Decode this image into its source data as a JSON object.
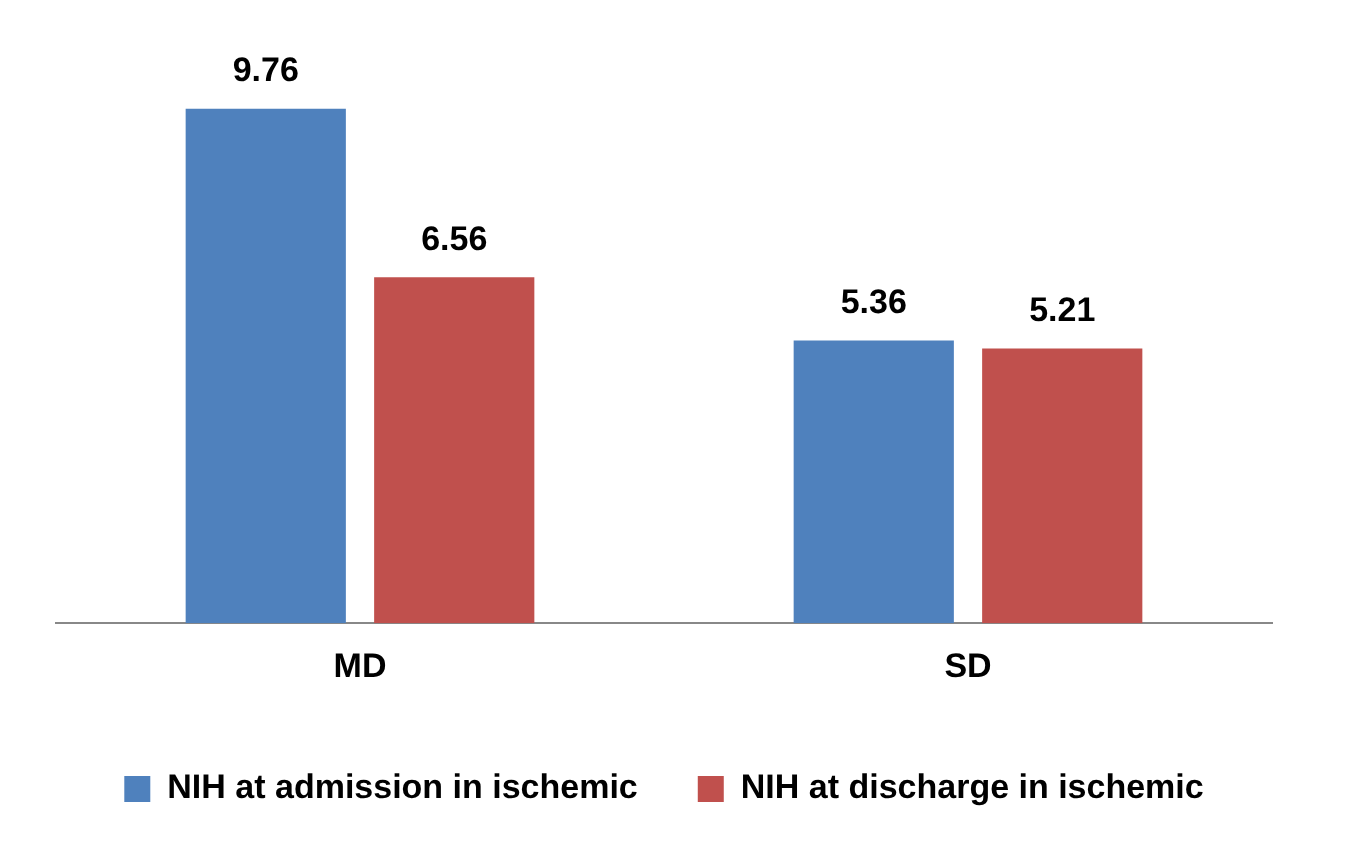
{
  "chart_data": {
    "type": "bar",
    "categories": [
      "MD",
      "SD"
    ],
    "series": [
      {
        "name": "NIH at admission in ischemic",
        "color": "#4f81bd",
        "values": [
          9.76,
          5.36
        ]
      },
      {
        "name": "NIH at discharge in ischemic",
        "color": "#c0504d",
        "values": [
          6.56,
          5.21
        ]
      }
    ],
    "data_labels": true,
    "legend": "bottom",
    "grid": false,
    "tick_labels": "x"
  }
}
